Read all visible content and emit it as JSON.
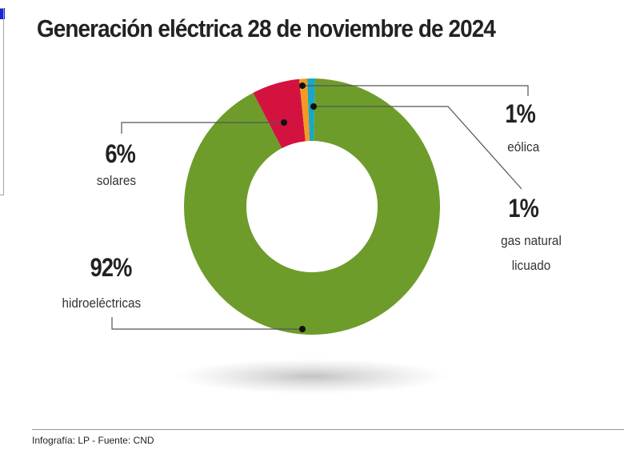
{
  "chart_data": {
    "type": "pie",
    "variant": "donut",
    "title": "Generación eléctrica 28 de noviembre de 2024",
    "slices": [
      {
        "label": "hidroeléctricas",
        "value": 92,
        "display": "92%",
        "color": "#6e9c2b"
      },
      {
        "label": "solares",
        "value": 6,
        "display": "6%",
        "color": "#d4123f"
      },
      {
        "label": "gas natural licuado",
        "value": 1,
        "display": "1%",
        "color": "#f39a23"
      },
      {
        "label": "eólica",
        "value": 1,
        "display": "1%",
        "color": "#1aa7c4"
      }
    ],
    "legend": "none"
  },
  "footer": "Infografía: LP - Fuente: CND"
}
